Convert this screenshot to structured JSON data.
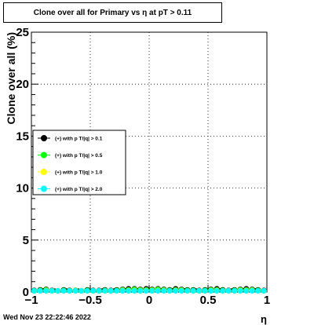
{
  "title": "Clone  over all for Primary vs   η at pT > 0.11",
  "footer": "Wed Nov 23 22:22:46 2022",
  "chart_data": {
    "type": "scatter",
    "title": "Clone  over all for Primary vs   η at pT > 0.11",
    "xlabel": "η",
    "ylabel": "Clone  over all (%)",
    "xlim": [
      -1,
      1
    ],
    "ylim": [
      0,
      25
    ],
    "x_ticks": [
      -1,
      -0.5,
      0,
      0.5,
      1
    ],
    "x_tick_labels": [
      "−1",
      "−0.5",
      "0",
      "0.5",
      "1"
    ],
    "y_ticks": [
      0,
      5,
      10,
      15,
      20,
      25
    ],
    "y_tick_labels": [
      "0",
      "5",
      "10",
      "15",
      "20",
      "25"
    ],
    "grid": true,
    "legend_position": "middle-left",
    "x": [
      -0.975,
      -0.925,
      -0.875,
      -0.825,
      -0.775,
      -0.725,
      -0.675,
      -0.625,
      -0.575,
      -0.525,
      -0.475,
      -0.425,
      -0.375,
      -0.325,
      -0.275,
      -0.225,
      -0.175,
      -0.125,
      -0.075,
      -0.025,
      0.025,
      0.075,
      0.125,
      0.175,
      0.225,
      0.275,
      0.325,
      0.375,
      0.425,
      0.475,
      0.525,
      0.575,
      0.625,
      0.675,
      0.725,
      0.775,
      0.825,
      0.875,
      0.925,
      0.975
    ],
    "series": [
      {
        "name": "(+) with p T/|q| > 0.1",
        "color": "#000000",
        "values": [
          0.15,
          0.2,
          0.25,
          0.15,
          0.1,
          0.2,
          0.15,
          0.15,
          0.1,
          0.2,
          0.15,
          0.15,
          0.2,
          0.15,
          0.2,
          0.25,
          0.3,
          0.3,
          0.25,
          0.3,
          0.25,
          0.3,
          0.25,
          0.2,
          0.3,
          0.25,
          0.2,
          0.2,
          0.15,
          0.2,
          0.25,
          0.3,
          0.2,
          0.15,
          0.2,
          0.25,
          0.3,
          0.25,
          0.2,
          0.15
        ]
      },
      {
        "name": "(+) with p T/|q| > 0.5",
        "color": "#00ff00",
        "values": [
          0.1,
          0.15,
          0.2,
          0.1,
          0.1,
          0.15,
          0.1,
          0.15,
          0.1,
          0.15,
          0.1,
          0.1,
          0.15,
          0.1,
          0.15,
          0.2,
          0.2,
          0.25,
          0.2,
          0.2,
          0.2,
          0.25,
          0.2,
          0.15,
          0.2,
          0.2,
          0.15,
          0.15,
          0.1,
          0.15,
          0.2,
          0.2,
          0.15,
          0.1,
          0.15,
          0.2,
          0.2,
          0.2,
          0.15,
          0.1
        ]
      },
      {
        "name": "(+) with p T/|q| > 1.0",
        "color": "#ffff00",
        "values": [
          0.05,
          0.1,
          0.15,
          0.1,
          0.05,
          0.1,
          0.1,
          0.1,
          0.05,
          0.1,
          0.05,
          0.1,
          0.1,
          0.1,
          0.1,
          0.15,
          0.15,
          0.15,
          0.15,
          0.15,
          0.15,
          0.15,
          0.15,
          0.1,
          0.15,
          0.15,
          0.1,
          0.1,
          0.05,
          0.1,
          0.15,
          0.15,
          0.1,
          0.05,
          0.1,
          0.15,
          0.15,
          0.15,
          0.1,
          0.1
        ]
      },
      {
        "name": "(+) with p T/|q| > 2.0",
        "color": "#00ffff",
        "values": [
          0.05,
          0.05,
          0.1,
          0.05,
          0.05,
          0.05,
          0.05,
          0.05,
          0.05,
          0.05,
          0.05,
          0.05,
          0.05,
          0.05,
          0.05,
          0.1,
          0.1,
          0.1,
          0.1,
          0.1,
          0.1,
          0.1,
          0.1,
          0.05,
          0.1,
          0.1,
          0.05,
          0.05,
          0.05,
          0.05,
          0.1,
          0.1,
          0.05,
          0.05,
          0.05,
          0.1,
          0.1,
          0.1,
          0.05,
          0.05
        ]
      }
    ]
  }
}
